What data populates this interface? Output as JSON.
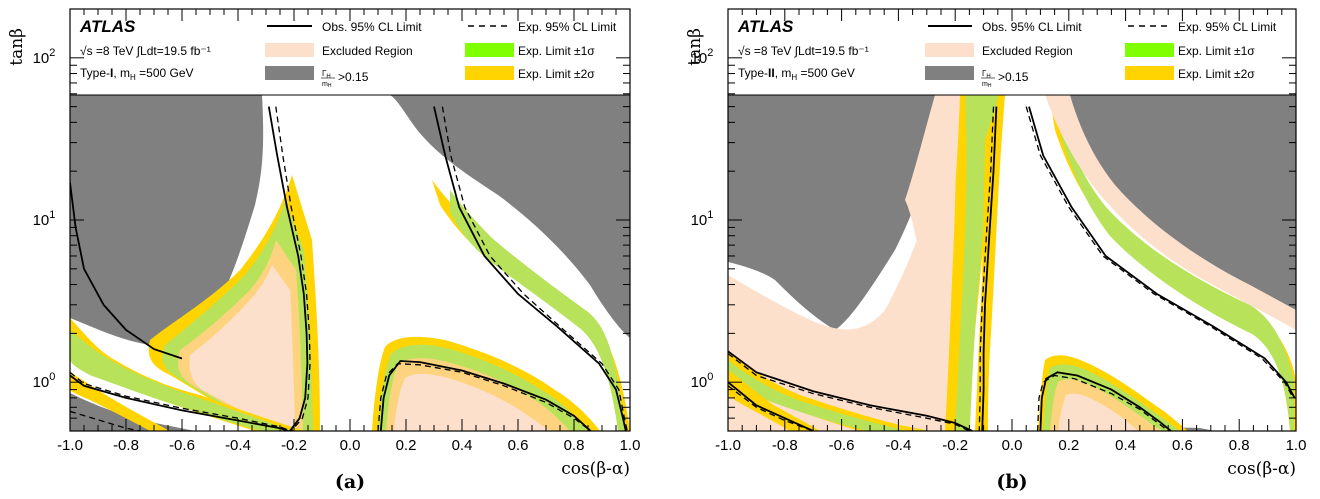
{
  "chart_data": [
    {
      "type": "area",
      "panel_label": "(a)",
      "experiment": "ATLAS",
      "energy_label": "√s =8 TeV ∫Ldt=19.5 fb⁻¹",
      "model_label": "Type-I, m_H =500 GeV",
      "model_text": "Type-",
      "model_roman": "I",
      "model_rest": ", m",
      "model_sub": "H",
      "model_tail": " =500 GeV",
      "xlabel": "cos(β-α)",
      "ylabel": "tanβ",
      "xlim": [
        -1.0,
        1.0
      ],
      "ylim": [
        0.5,
        200
      ],
      "yscale": "log",
      "xticks": [
        "-1.0",
        "-0.8",
        "-0.6",
        "-0.4",
        "-0.2",
        "0.0",
        "0.2",
        "0.4",
        "0.6",
        "0.8",
        "1.0"
      ],
      "yticks": [
        "10^0",
        "10^1",
        "10^2"
      ],
      "legend": {
        "obs": "Obs. 95% CL Limit",
        "exp": "Exp. 95% CL Limit",
        "excluded": "Excluded Region",
        "one_sigma": "Exp. Limit ±1σ",
        "two_sigma": "Exp. Limit ±2σ",
        "width": ">0.15"
      },
      "colors": {
        "excluded": "#fde0cc",
        "two_sigma": "#ffd400",
        "one_sigma": "#80ff00",
        "width": "#808080"
      },
      "exp_curves": [
        [
          [
            -0.265,
            50
          ],
          [
            -0.24,
            25
          ],
          [
            -0.21,
            12
          ],
          [
            -0.175,
            6
          ],
          [
            -0.155,
            3.5
          ],
          [
            -0.145,
            2
          ],
          [
            -0.143,
            1.3
          ],
          [
            -0.15,
            0.8
          ],
          [
            -0.17,
            0.6
          ],
          [
            -0.21,
            0.5
          ]
        ],
        [
          [
            0.33,
            50
          ],
          [
            0.36,
            25
          ],
          [
            0.41,
            12
          ],
          [
            0.5,
            6
          ],
          [
            0.62,
            3.5
          ],
          [
            0.75,
            2.2
          ],
          [
            0.9,
            1.3
          ],
          [
            0.96,
            0.9
          ],
          [
            0.98,
            0.6
          ],
          [
            0.99,
            0.5
          ]
        ],
        [
          [
            -1.0,
            0.66
          ],
          [
            -0.8,
            0.52
          ],
          [
            -0.75,
            0.5
          ]
        ],
        [
          [
            -1.0,
            1.15
          ],
          [
            -0.95,
            0.98
          ],
          [
            -0.8,
            0.82
          ],
          [
            -0.6,
            0.69
          ],
          [
            -0.4,
            0.6
          ],
          [
            -0.25,
            0.53
          ],
          [
            -0.21,
            0.5
          ]
        ],
        [
          [
            0.1,
            0.5
          ],
          [
            0.11,
            0.8
          ],
          [
            0.13,
            1.1
          ],
          [
            0.17,
            1.3
          ],
          [
            0.25,
            1.28
          ],
          [
            0.4,
            1.15
          ],
          [
            0.55,
            0.95
          ],
          [
            0.7,
            0.75
          ],
          [
            0.8,
            0.6
          ],
          [
            0.86,
            0.5
          ]
        ]
      ],
      "obs_curves": [
        [
          [
            -0.29,
            50
          ],
          [
            -0.26,
            25
          ],
          [
            -0.225,
            12
          ],
          [
            -0.185,
            6
          ],
          [
            -0.165,
            3.5
          ],
          [
            -0.155,
            2
          ],
          [
            -0.152,
            1.3
          ],
          [
            -0.16,
            0.8
          ],
          [
            -0.18,
            0.6
          ],
          [
            -0.215,
            0.5
          ]
        ],
        [
          [
            0.3,
            50
          ],
          [
            0.34,
            25
          ],
          [
            0.39,
            12
          ],
          [
            0.48,
            6
          ],
          [
            0.6,
            3.5
          ],
          [
            0.74,
            2.2
          ],
          [
            0.89,
            1.3
          ],
          [
            0.95,
            0.9
          ],
          [
            0.975,
            0.6
          ],
          [
            0.985,
            0.5
          ]
        ],
        [
          [
            -1.0,
            17
          ],
          [
            -0.98,
            9
          ],
          [
            -0.95,
            5
          ],
          [
            -0.88,
            3
          ],
          [
            -0.8,
            2.1
          ],
          [
            -0.7,
            1.6
          ],
          [
            -0.6,
            1.4
          ]
        ],
        [
          [
            -1.0,
            1.1
          ],
          [
            -0.95,
            0.95
          ],
          [
            -0.8,
            0.8
          ],
          [
            -0.6,
            0.67
          ],
          [
            -0.4,
            0.58
          ],
          [
            -0.25,
            0.52
          ],
          [
            -0.22,
            0.5
          ]
        ],
        [
          [
            0.11,
            0.5
          ],
          [
            0.12,
            0.8
          ],
          [
            0.14,
            1.1
          ],
          [
            0.18,
            1.35
          ],
          [
            0.25,
            1.33
          ],
          [
            0.4,
            1.18
          ],
          [
            0.55,
            0.98
          ],
          [
            0.7,
            0.78
          ],
          [
            0.8,
            0.62
          ],
          [
            0.86,
            0.5
          ]
        ]
      ]
    },
    {
      "type": "area",
      "panel_label": "(b)",
      "experiment": "ATLAS",
      "energy_label": "√s =8 TeV ∫Ldt=19.5 fb⁻¹",
      "model_label": "Type-II, m_H =500 GeV",
      "model_text": "Type-",
      "model_roman": "II",
      "model_rest": ", m",
      "model_sub": "H",
      "model_tail": " =500 GeV",
      "xlabel": "cos(β-α)",
      "ylabel": "tanβ",
      "xlim": [
        -1.0,
        1.0
      ],
      "ylim": [
        0.5,
        200
      ],
      "yscale": "log",
      "xticks": [
        "-1.0",
        "-0.8",
        "-0.6",
        "-0.4",
        "-0.2",
        "0.0",
        "0.2",
        "0.4",
        "0.6",
        "0.8",
        "1.0"
      ],
      "yticks": [
        "10^0",
        "10^1",
        "10^2"
      ],
      "legend": {
        "obs": "Obs. 95% CL Limit",
        "exp": "Exp. 95% CL Limit",
        "excluded": "Excluded Region",
        "one_sigma": "Exp. Limit ±1σ",
        "two_sigma": "Exp. Limit ±2σ",
        "width": ">0.15"
      },
      "colors": {
        "excluded": "#fde0cc",
        "two_sigma": "#ffd400",
        "one_sigma": "#80ff00",
        "width": "#808080"
      },
      "exp_curves": [
        [
          [
            -0.065,
            50
          ],
          [
            -0.075,
            20
          ],
          [
            -0.09,
            8
          ],
          [
            -0.105,
            3
          ],
          [
            -0.112,
            1.5
          ],
          [
            -0.112,
            0.9
          ],
          [
            -0.115,
            0.5
          ]
        ],
        [
          [
            0.05,
            50
          ],
          [
            0.1,
            25
          ],
          [
            0.2,
            12
          ],
          [
            0.32,
            6
          ],
          [
            0.5,
            3.5
          ],
          [
            0.7,
            2.2
          ],
          [
            0.88,
            1.4
          ],
          [
            0.96,
            1.0
          ],
          [
            0.99,
            0.8
          ]
        ],
        [
          [
            -1.0,
            0.95
          ],
          [
            -0.9,
            0.7
          ],
          [
            -0.8,
            0.58
          ],
          [
            -0.7,
            0.5
          ]
        ],
        [
          [
            -1.0,
            1.5
          ],
          [
            -0.9,
            1.1
          ],
          [
            -0.7,
            0.85
          ],
          [
            -0.5,
            0.7
          ],
          [
            -0.3,
            0.6
          ],
          [
            -0.2,
            0.55
          ],
          [
            -0.15,
            0.5
          ]
        ],
        [
          [
            0.09,
            0.5
          ],
          [
            0.095,
            0.8
          ],
          [
            0.11,
            1.0
          ],
          [
            0.15,
            1.1
          ],
          [
            0.22,
            1.05
          ],
          [
            0.35,
            0.85
          ],
          [
            0.45,
            0.68
          ],
          [
            0.52,
            0.55
          ],
          [
            0.55,
            0.5
          ]
        ]
      ],
      "obs_curves": [
        [
          [
            -0.055,
            50
          ],
          [
            -0.065,
            20
          ],
          [
            -0.08,
            8
          ],
          [
            -0.095,
            3
          ],
          [
            -0.1,
            1.5
          ],
          [
            -0.1,
            0.9
          ],
          [
            -0.105,
            0.5
          ]
        ],
        [
          [
            0.06,
            50
          ],
          [
            0.11,
            25
          ],
          [
            0.21,
            12
          ],
          [
            0.33,
            6
          ],
          [
            0.51,
            3.5
          ],
          [
            0.71,
            2.2
          ],
          [
            0.89,
            1.4
          ],
          [
            0.965,
            1.0
          ],
          [
            0.995,
            0.8
          ]
        ],
        [
          [
            -1.0,
            1.0
          ],
          [
            -0.9,
            0.72
          ],
          [
            -0.8,
            0.6
          ],
          [
            -0.7,
            0.5
          ]
        ],
        [
          [
            -1.0,
            1.55
          ],
          [
            -0.9,
            1.15
          ],
          [
            -0.7,
            0.88
          ],
          [
            -0.5,
            0.72
          ],
          [
            -0.3,
            0.62
          ],
          [
            -0.2,
            0.56
          ],
          [
            -0.14,
            0.5
          ]
        ],
        [
          [
            0.1,
            0.5
          ],
          [
            0.105,
            0.8
          ],
          [
            0.12,
            1.05
          ],
          [
            0.16,
            1.15
          ],
          [
            0.23,
            1.1
          ],
          [
            0.35,
            0.9
          ],
          [
            0.45,
            0.7
          ],
          [
            0.52,
            0.57
          ],
          [
            0.56,
            0.5
          ]
        ]
      ]
    }
  ]
}
